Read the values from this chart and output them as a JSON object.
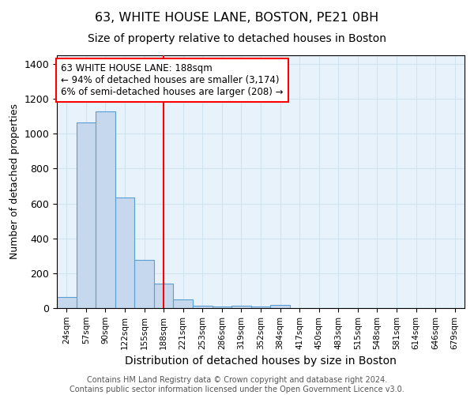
{
  "title1": "63, WHITE HOUSE LANE, BOSTON, PE21 0BH",
  "title2": "Size of property relative to detached houses in Boston",
  "xlabel": "Distribution of detached houses by size in Boston",
  "ylabel": "Number of detached properties",
  "categories": [
    "24sqm",
    "57sqm",
    "90sqm",
    "122sqm",
    "155sqm",
    "188sqm",
    "221sqm",
    "253sqm",
    "286sqm",
    "319sqm",
    "352sqm",
    "384sqm",
    "417sqm",
    "450sqm",
    "483sqm",
    "515sqm",
    "548sqm",
    "581sqm",
    "614sqm",
    "646sqm",
    "679sqm"
  ],
  "values": [
    65,
    1065,
    1130,
    635,
    275,
    140,
    50,
    15,
    10,
    15,
    10,
    20,
    0,
    0,
    0,
    0,
    0,
    0,
    0,
    0,
    0
  ],
  "bar_color": "#c5d8ed",
  "bar_edge_color": "#5a9fd4",
  "highlight_index": 5,
  "annotation_line1": "63 WHITE HOUSE LANE: 188sqm",
  "annotation_line2": "← 94% of detached houses are smaller (3,174)",
  "annotation_line3": "6% of semi-detached houses are larger (208) →",
  "annotation_box_color": "white",
  "annotation_box_edge": "red",
  "ylim": [
    0,
    1450
  ],
  "yticks": [
    0,
    200,
    400,
    600,
    800,
    1000,
    1200,
    1400
  ],
  "grid_color": "#d0e4f0",
  "background_color": "#e8f2fb",
  "footer_text": "Contains HM Land Registry data © Crown copyright and database right 2024.\nContains public sector information licensed under the Open Government Licence v3.0.",
  "title1_fontsize": 11.5,
  "title2_fontsize": 10,
  "xlabel_fontsize": 10,
  "ylabel_fontsize": 9,
  "annotation_fontsize": 8.5,
  "footer_fontsize": 7
}
